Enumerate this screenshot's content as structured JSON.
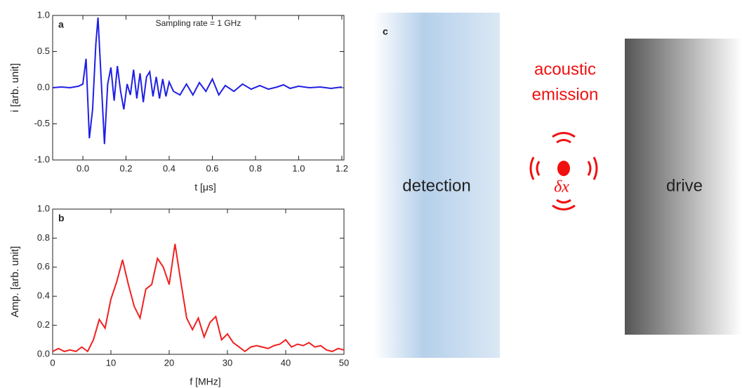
{
  "chart_data": [
    {
      "type": "line",
      "annotation": "a",
      "subtitle": "Sampling rate = 1 GHz",
      "xlabel": "t [μs]",
      "ylabel": "i [arb. unit]",
      "color": "#1f1fe6",
      "xlim": [
        -0.14,
        1.21
      ],
      "ylim": [
        -1.0,
        1.0
      ],
      "xticks": [
        {
          "value": 0,
          "label": "0.0"
        },
        0.2,
        0.4,
        0.6,
        0.8,
        {
          "value": 1,
          "label": "1.0"
        },
        1.2
      ],
      "yticks": [
        {
          "value": -1,
          "label": "-1.0"
        },
        -0.5,
        {
          "value": 0,
          "label": "0.0"
        },
        0.5,
        {
          "value": 1,
          "label": "1.0"
        }
      ],
      "x": [
        -0.14,
        -0.1,
        -0.06,
        -0.02,
        0.0,
        0.015,
        0.03,
        0.045,
        0.06,
        0.07,
        0.085,
        0.1,
        0.115,
        0.13,
        0.145,
        0.16,
        0.175,
        0.19,
        0.205,
        0.22,
        0.235,
        0.25,
        0.265,
        0.28,
        0.295,
        0.31,
        0.325,
        0.34,
        0.355,
        0.37,
        0.385,
        0.4,
        0.42,
        0.45,
        0.48,
        0.51,
        0.54,
        0.57,
        0.6,
        0.63,
        0.66,
        0.7,
        0.74,
        0.78,
        0.82,
        0.86,
        0.9,
        0.93,
        0.96,
        1.0,
        1.05,
        1.1,
        1.15,
        1.2
      ],
      "values": [
        0,
        0.01,
        0,
        0.02,
        0.05,
        0.4,
        -0.7,
        -0.3,
        0.6,
        0.97,
        0.1,
        -0.78,
        0.05,
        0.28,
        -0.18,
        0.3,
        -0.05,
        -0.3,
        0.05,
        -0.1,
        0.25,
        -0.15,
        0.2,
        -0.2,
        0.15,
        0.22,
        -0.12,
        0.15,
        -0.15,
        0.12,
        -0.12,
        0.08,
        -0.05,
        -0.1,
        0.05,
        -0.1,
        0.07,
        -0.05,
        0.12,
        -0.1,
        0.03,
        -0.05,
        0.05,
        -0.02,
        0.03,
        -0.02,
        0.01,
        0.04,
        -0.01,
        0.02,
        0,
        0.01,
        -0.01,
        0.01
      ]
    },
    {
      "type": "line",
      "annotation": "b",
      "xlabel": "f [MHz]",
      "ylabel": "Amp. [arb. unit]",
      "color": "#f02020",
      "xlim": [
        0,
        50
      ],
      "ylim": [
        0,
        1.0
      ],
      "xticks": [
        0,
        10,
        20,
        30,
        40,
        50
      ],
      "yticks": [
        {
          "value": 0,
          "label": "0.0"
        },
        0.2,
        0.4,
        0.6,
        0.8,
        {
          "value": 1,
          "label": "1.0"
        }
      ],
      "x": [
        0,
        1,
        2,
        3,
        4,
        5,
        6,
        7,
        8,
        9,
        10,
        11,
        12,
        13,
        14,
        15,
        16,
        17,
        18,
        19,
        20,
        21,
        22,
        23,
        24,
        25,
        26,
        27,
        28,
        29,
        30,
        31,
        32,
        33,
        34,
        35,
        36,
        37,
        38,
        39,
        40,
        41,
        42,
        43,
        44,
        45,
        46,
        47,
        48,
        49,
        50
      ],
      "values": [
        0.02,
        0.04,
        0.02,
        0.03,
        0.02,
        0.05,
        0.02,
        0.1,
        0.24,
        0.18,
        0.38,
        0.5,
        0.65,
        0.48,
        0.33,
        0.25,
        0.45,
        0.48,
        0.66,
        0.6,
        0.48,
        0.76,
        0.5,
        0.25,
        0.17,
        0.25,
        0.12,
        0.22,
        0.26,
        0.1,
        0.14,
        0.08,
        0.05,
        0.02,
        0.05,
        0.06,
        0.05,
        0.04,
        0.06,
        0.07,
        0.1,
        0.05,
        0.07,
        0.06,
        0.08,
        0.05,
        0.06,
        0.03,
        0.02,
        0.04,
        0.03
      ]
    }
  ],
  "diagram": {
    "label": "c",
    "detection": "detection",
    "emission": [
      "acoustic",
      "emission"
    ],
    "displacement": "δx",
    "drive": "drive"
  }
}
